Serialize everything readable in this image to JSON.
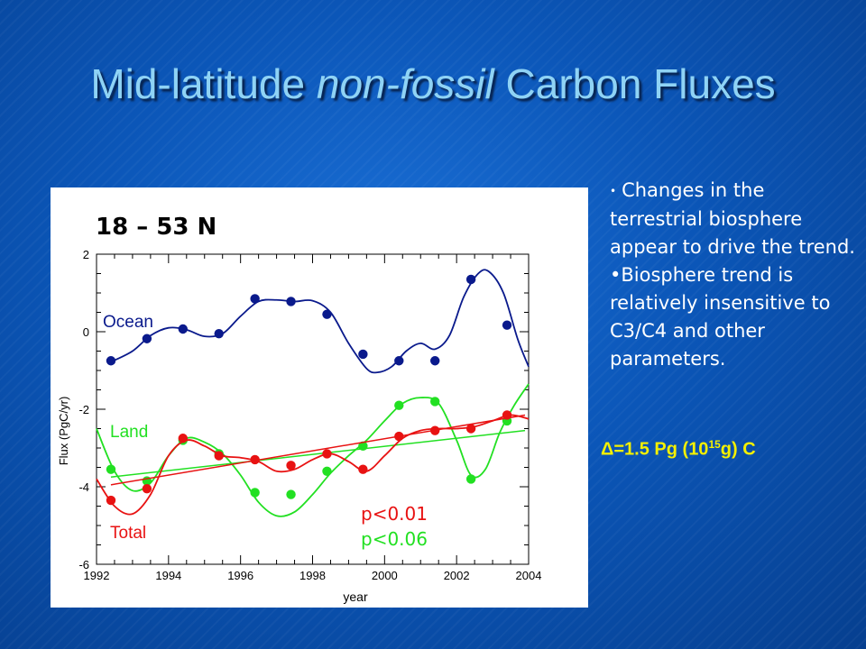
{
  "slide": {
    "title_part1": "Mid-latitude ",
    "title_italic": "non-fossil",
    "title_part2": " Carbon Fluxes",
    "bullet1": "Changes in the terrestrial biosphere appear to drive the trend.",
    "bullet2": "•Biosphere trend is relatively insensitive to C3/C4 and other parameters.",
    "brace": "}",
    "delta_prefix": "Δ=1.5 Pg (10",
    "delta_sup": "15",
    "delta_suffix": "g) C"
  },
  "colors": {
    "ocean": "#0a1a8c",
    "land": "#22e022",
    "total": "#e81212",
    "delta_text": "#f4f000",
    "title": "#8fd3f5"
  },
  "chart_data": {
    "type": "scatter",
    "title": "18 – 53 N",
    "xlabel": "year",
    "ylabel": "Flux (PgC/yr)",
    "xlim": [
      1992,
      2004
    ],
    "ylim": [
      -6,
      2
    ],
    "xticks": [
      1992,
      1994,
      1996,
      1998,
      2000,
      2002,
      2004
    ],
    "yticks": [
      -6,
      -4,
      -2,
      0,
      2
    ],
    "legend_placement": "in-plot labels",
    "series": [
      {
        "name": "Ocean",
        "color": "#0a1a8c",
        "points": [
          [
            1992.4,
            -0.75
          ],
          [
            1993.4,
            -0.18
          ],
          [
            1994.4,
            0.07
          ],
          [
            1995.4,
            -0.05
          ],
          [
            1996.4,
            0.85
          ],
          [
            1997.4,
            0.78
          ],
          [
            1998.4,
            0.45
          ],
          [
            1999.4,
            -0.58
          ],
          [
            2000.4,
            -0.75
          ],
          [
            2001.4,
            -0.75
          ],
          [
            2002.4,
            1.35
          ],
          [
            2003.4,
            0.17
          ]
        ],
        "curve": [
          [
            1992.4,
            -0.78
          ],
          [
            1993.0,
            -0.5
          ],
          [
            1993.5,
            -0.1
          ],
          [
            1994.0,
            0.1
          ],
          [
            1994.5,
            0.05
          ],
          [
            1995.0,
            -0.12
          ],
          [
            1995.5,
            -0.05
          ],
          [
            1996.0,
            0.4
          ],
          [
            1996.5,
            0.78
          ],
          [
            1997.0,
            0.82
          ],
          [
            1997.5,
            0.78
          ],
          [
            1998.0,
            0.8
          ],
          [
            1998.5,
            0.5
          ],
          [
            1999.0,
            -0.3
          ],
          [
            1999.5,
            -0.95
          ],
          [
            1999.8,
            -1.05
          ],
          [
            2000.2,
            -0.9
          ],
          [
            2000.6,
            -0.5
          ],
          [
            2001.0,
            -0.3
          ],
          [
            2001.4,
            -0.45
          ],
          [
            2001.8,
            -0.1
          ],
          [
            2002.2,
            0.9
          ],
          [
            2002.6,
            1.5
          ],
          [
            2002.9,
            1.55
          ],
          [
            2003.3,
            1.0
          ],
          [
            2003.7,
            -0.2
          ],
          [
            2004.0,
            -0.9
          ]
        ]
      },
      {
        "name": "Land",
        "color": "#22e022",
        "points": [
          [
            1992.4,
            -3.55
          ],
          [
            1993.4,
            -3.85
          ],
          [
            1994.4,
            -2.8
          ],
          [
            1995.4,
            -3.15
          ],
          [
            1996.4,
            -4.15
          ],
          [
            1997.4,
            -4.2
          ],
          [
            1998.4,
            -3.6
          ],
          [
            1999.4,
            -2.95
          ],
          [
            2000.4,
            -1.9
          ],
          [
            2001.4,
            -1.8
          ],
          [
            2002.4,
            -3.8
          ],
          [
            2003.4,
            -2.3
          ]
        ],
        "curve": [
          [
            1992.0,
            -2.5
          ],
          [
            1992.5,
            -3.6
          ],
          [
            1993.0,
            -4.1
          ],
          [
            1993.5,
            -3.9
          ],
          [
            1994.0,
            -3.2
          ],
          [
            1994.5,
            -2.75
          ],
          [
            1995.0,
            -2.85
          ],
          [
            1995.5,
            -3.15
          ],
          [
            1996.0,
            -3.7
          ],
          [
            1996.5,
            -4.4
          ],
          [
            1997.0,
            -4.75
          ],
          [
            1997.5,
            -4.65
          ],
          [
            1998.0,
            -4.2
          ],
          [
            1998.5,
            -3.65
          ],
          [
            1999.0,
            -3.2
          ],
          [
            1999.5,
            -2.8
          ],
          [
            2000.0,
            -2.3
          ],
          [
            2000.5,
            -1.85
          ],
          [
            2001.0,
            -1.7
          ],
          [
            2001.5,
            -1.85
          ],
          [
            2002.0,
            -2.8
          ],
          [
            2002.4,
            -3.7
          ],
          [
            2002.8,
            -3.55
          ],
          [
            2003.2,
            -2.6
          ],
          [
            2003.6,
            -1.9
          ],
          [
            2004.0,
            -1.35
          ]
        ],
        "trend": [
          [
            1992.4,
            -3.75
          ],
          [
            2003.9,
            -2.55
          ]
        ]
      },
      {
        "name": "Total",
        "color": "#e81212",
        "points": [
          [
            1992.4,
            -4.35
          ],
          [
            1993.4,
            -4.05
          ],
          [
            1994.4,
            -2.75
          ],
          [
            1995.4,
            -3.2
          ],
          [
            1996.4,
            -3.3
          ],
          [
            1997.4,
            -3.45
          ],
          [
            1998.4,
            -3.15
          ],
          [
            1999.4,
            -3.55
          ],
          [
            2000.4,
            -2.7
          ],
          [
            2001.4,
            -2.55
          ],
          [
            2002.4,
            -2.5
          ],
          [
            2003.4,
            -2.15
          ]
        ],
        "curve": [
          [
            1992.0,
            -3.8
          ],
          [
            1992.5,
            -4.5
          ],
          [
            1993.0,
            -4.7
          ],
          [
            1993.5,
            -4.2
          ],
          [
            1994.0,
            -3.2
          ],
          [
            1994.5,
            -2.8
          ],
          [
            1995.0,
            -2.95
          ],
          [
            1995.5,
            -3.2
          ],
          [
            1996.0,
            -3.25
          ],
          [
            1996.5,
            -3.35
          ],
          [
            1997.0,
            -3.6
          ],
          [
            1997.5,
            -3.55
          ],
          [
            1998.0,
            -3.3
          ],
          [
            1998.5,
            -3.15
          ],
          [
            1999.0,
            -3.35
          ],
          [
            1999.5,
            -3.6
          ],
          [
            2000.0,
            -3.2
          ],
          [
            2000.5,
            -2.75
          ],
          [
            2001.0,
            -2.55
          ],
          [
            2001.5,
            -2.5
          ],
          [
            2002.0,
            -2.5
          ],
          [
            2002.5,
            -2.45
          ],
          [
            2003.0,
            -2.3
          ],
          [
            2003.5,
            -2.15
          ],
          [
            2004.0,
            -2.25
          ]
        ],
        "trend": [
          [
            1992.4,
            -3.95
          ],
          [
            2003.9,
            -2.15
          ]
        ]
      }
    ],
    "annotations": {
      "ocean_label": "Ocean",
      "land_label": "Land",
      "total_label": "Total",
      "p_total": "p<0.01",
      "p_land": "p<0.06"
    }
  }
}
